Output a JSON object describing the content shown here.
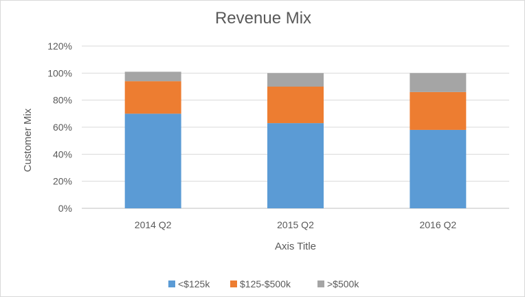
{
  "chart_data": {
    "type": "bar",
    "stacked": true,
    "title": "Revenue Mix",
    "xlabel": "Axis Title",
    "ylabel": "Customer Mix",
    "categories": [
      "2014 Q2",
      "2015 Q2",
      "2016 Q2"
    ],
    "series": [
      {
        "name": "<$125k",
        "values": [
          0.7,
          0.63,
          0.58
        ],
        "color": "#5b9bd5"
      },
      {
        "name": "$125-$500k",
        "values": [
          0.24,
          0.27,
          0.28
        ],
        "color": "#ed7d31"
      },
      {
        "name": ">$500k",
        "values": [
          0.07,
          0.1,
          0.14
        ],
        "color": "#a5a5a5"
      }
    ],
    "ylim": [
      0,
      1.2
    ],
    "yticks": [
      "0%",
      "20%",
      "40%",
      "60%",
      "80%",
      "100%",
      "120%"
    ],
    "grid": true,
    "legend_position": "bottom"
  }
}
